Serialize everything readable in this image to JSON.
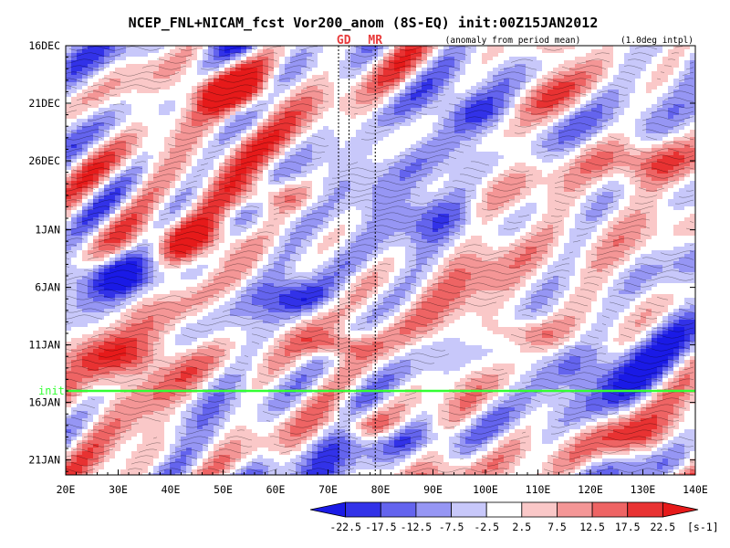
{
  "chart_data": {
    "type": "heatmap",
    "title": "NCEP_FNL+NICAM_fcst Vor200_anom (8S-EQ) init:00Z15JAN2012",
    "subtitle": "(anomaly from period mean)",
    "note": "(1.0deg intpl)",
    "x_tick_labels": [
      "20E",
      "30E",
      "40E",
      "50E",
      "60E",
      "70E",
      "80E",
      "90E",
      "100E",
      "110E",
      "120E",
      "130E",
      "140E"
    ],
    "x_range": [
      20,
      140
    ],
    "y_tick_labels": [
      "16DEC",
      "21DEC",
      "26DEC",
      "1JAN",
      "6JAN",
      "11JAN",
      "16JAN",
      "21JAN"
    ],
    "y_tick_days": [
      0,
      5,
      10,
      16,
      21,
      26,
      31,
      36
    ],
    "y_range_days": [
      0,
      37.3
    ],
    "init_line": {
      "label": "init",
      "day": 30,
      "color": "#33ff33"
    },
    "region_markers": [
      {
        "label": "GD",
        "lon_start": 72,
        "lon_end": 74
      },
      {
        "label": "MR",
        "lon_start": 79,
        "lon_end": 79
      }
    ],
    "colorbar": {
      "levels": [
        "-22.5",
        "-17.5",
        "-12.5",
        "-7.5",
        "-2.5",
        "2.5",
        "7.5",
        "12.5",
        "17.5",
        "22.5"
      ],
      "unit": "[s-1]",
      "colors": [
        "#1a1ae6",
        "#3232e8",
        "#6464ee",
        "#9696f4",
        "#c8c8fa",
        "#ffffff",
        "#fac8c8",
        "#f49696",
        "#ee6464",
        "#e83232",
        "#e61a1a"
      ]
    }
  }
}
